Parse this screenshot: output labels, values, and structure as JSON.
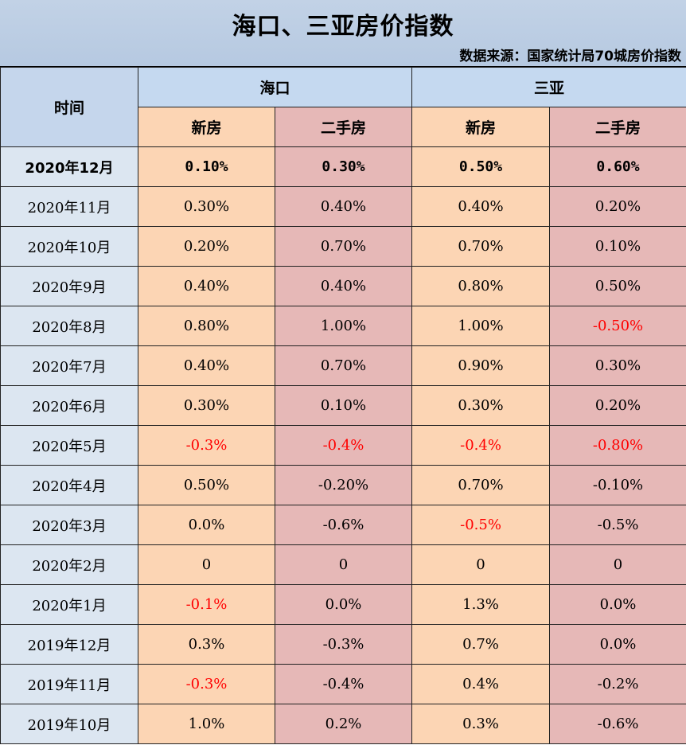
{
  "title": "海口、三亚房价指数",
  "source": "数据来源：国家统计局70城房价指数",
  "header": {
    "time_label": "时间",
    "cities": [
      "海口",
      "三亚"
    ],
    "sub_labels": [
      "新房",
      "二手房",
      "新房",
      "二手房"
    ]
  },
  "colors": {
    "header_blue": "#c5d9f0",
    "new_house_bg": "#fcd5b4",
    "used_house_bg": "#e6b8b7",
    "time_bg": "#dce6f1",
    "negative_text": "#ff0000"
  },
  "rows": [
    {
      "time": "2020年12月",
      "values": [
        "0.10%",
        "0.30%",
        "0.50%",
        "0.60%"
      ],
      "red": [
        false,
        false,
        false,
        false
      ]
    },
    {
      "time": "2020年11月",
      "values": [
        "0.30%",
        "0.40%",
        "0.40%",
        "0.20%"
      ],
      "red": [
        false,
        false,
        false,
        false
      ]
    },
    {
      "time": "2020年10月",
      "values": [
        "0.20%",
        "0.70%",
        "0.70%",
        "0.10%"
      ],
      "red": [
        false,
        false,
        false,
        false
      ]
    },
    {
      "time": "2020年9月",
      "values": [
        "0.40%",
        "0.40%",
        "0.80%",
        "0.50%"
      ],
      "red": [
        false,
        false,
        false,
        false
      ]
    },
    {
      "time": "2020年8月",
      "values": [
        "0.80%",
        "1.00%",
        "1.00%",
        "-0.50%"
      ],
      "red": [
        false,
        false,
        false,
        true
      ]
    },
    {
      "time": "2020年7月",
      "values": [
        "0.40%",
        "0.70%",
        "0.90%",
        "0.30%"
      ],
      "red": [
        false,
        false,
        false,
        false
      ]
    },
    {
      "time": "2020年6月",
      "values": [
        "0.30%",
        "0.10%",
        "0.30%",
        "0.20%"
      ],
      "red": [
        false,
        false,
        false,
        false
      ]
    },
    {
      "time": "2020年5月",
      "values": [
        "-0.3%",
        "-0.4%",
        "-0.4%",
        "-0.80%"
      ],
      "red": [
        true,
        true,
        true,
        true
      ]
    },
    {
      "time": "2020年4月",
      "values": [
        "0.50%",
        "-0.20%",
        "0.70%",
        "-0.10%"
      ],
      "red": [
        false,
        false,
        false,
        false
      ]
    },
    {
      "time": "2020年3月",
      "values": [
        "0.0%",
        "-0.6%",
        "-0.5%",
        "-0.5%"
      ],
      "red": [
        false,
        false,
        true,
        false
      ]
    },
    {
      "time": "2020年2月",
      "values": [
        "0",
        "0",
        "0",
        "0"
      ],
      "red": [
        false,
        false,
        false,
        false
      ]
    },
    {
      "time": "2020年1月",
      "values": [
        "-0.1%",
        "0.0%",
        "1.3%",
        "0.0%"
      ],
      "red": [
        true,
        false,
        false,
        false
      ]
    },
    {
      "time": "2019年12月",
      "values": [
        "0.3%",
        "-0.3%",
        "0.7%",
        "0.0%"
      ],
      "red": [
        false,
        false,
        false,
        false
      ]
    },
    {
      "time": "2019年11月",
      "values": [
        "-0.3%",
        "-0.4%",
        "0.4%",
        "-0.2%"
      ],
      "red": [
        true,
        false,
        false,
        false
      ]
    },
    {
      "time": "2019年10月",
      "values": [
        "1.0%",
        "0.2%",
        "0.3%",
        "-0.6%"
      ],
      "red": [
        false,
        false,
        false,
        false
      ]
    }
  ]
}
